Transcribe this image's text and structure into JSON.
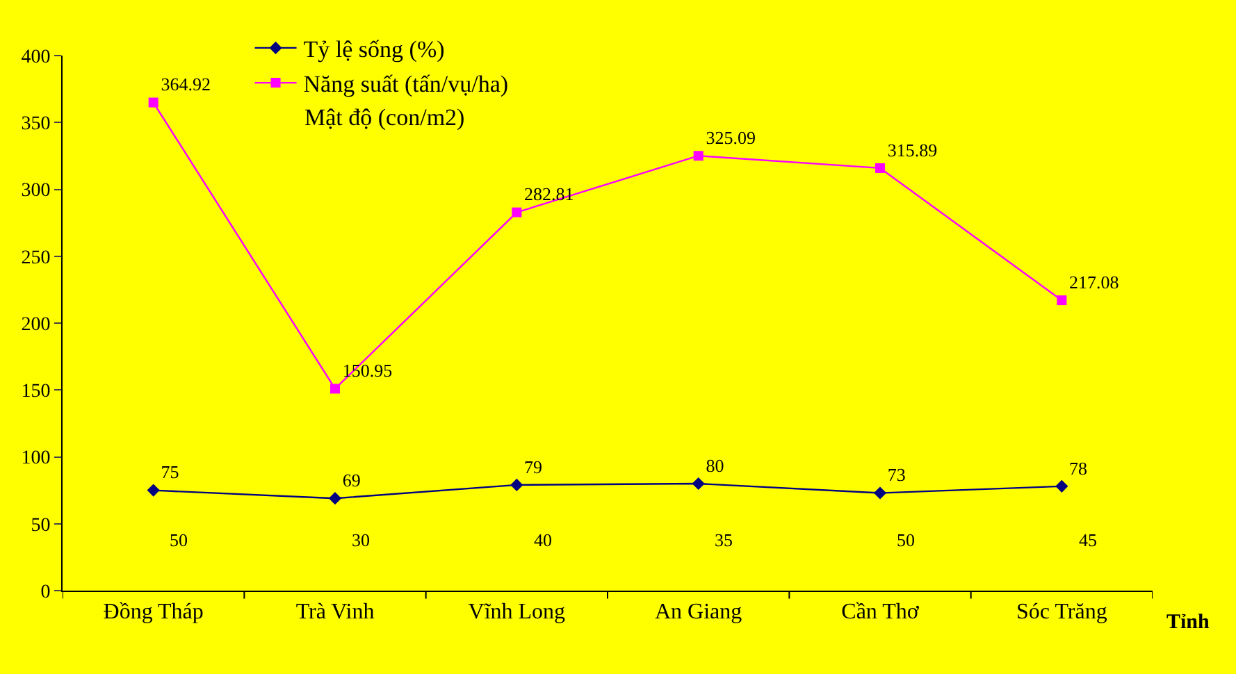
{
  "chart_data": {
    "type": "line",
    "xlabel": "Tỉnh",
    "categories": [
      "Đồng Tháp",
      "Trà Vinh",
      "Vĩnh Long",
      "An Giang",
      "Cần Thơ",
      "Sóc Trăng"
    ],
    "series": [
      {
        "name": "Tỷ lệ sống (%)",
        "color": "#000080",
        "marker": "diamond",
        "values": [
          75,
          69,
          79,
          80,
          73,
          78
        ]
      },
      {
        "name": "Năng suất (tấn/vụ/ha)",
        "color": "#ff00ff",
        "marker": "square",
        "values": [
          364.92,
          150.95,
          282.81,
          325.09,
          315.89,
          217.08
        ]
      }
    ],
    "annotations": [
      "Mật độ (con/m2)",
      "50",
      "30",
      "40",
      "35",
      "50",
      "45"
    ],
    "ylim": [
      0,
      400
    ],
    "yticks": [
      0,
      50,
      100,
      150,
      200,
      250,
      300,
      350,
      400
    ],
    "data_labels": true,
    "grid": false,
    "legend": "top left"
  }
}
